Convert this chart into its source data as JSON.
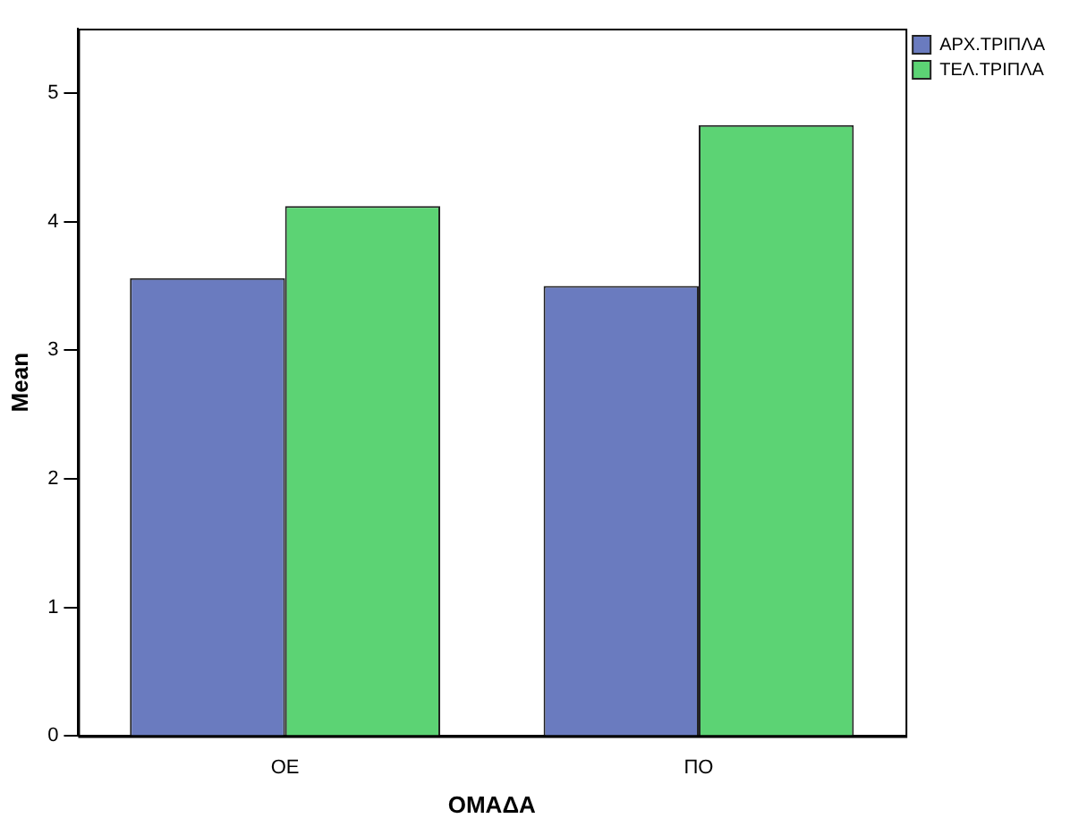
{
  "chart_data": {
    "type": "bar",
    "xlabel": "ΟΜΑΔΑ",
    "ylabel": "Mean",
    "categories": [
      "ΟΕ",
      "ΠΟ"
    ],
    "series": [
      {
        "name": "ΑΡΧ.ΤΡΙΠΛΑ",
        "color": "#6a7bbf",
        "values": [
          3.56,
          3.5
        ]
      },
      {
        "name": "ΤΕΛ.ΤΡΙΠΛΑ",
        "color": "#5cd374",
        "values": [
          4.12,
          4.75
        ]
      }
    ],
    "ylim": [
      0,
      5.5
    ],
    "yticks": [
      0,
      1,
      2,
      3,
      4,
      5
    ],
    "grid": false,
    "legend": "top right"
  }
}
